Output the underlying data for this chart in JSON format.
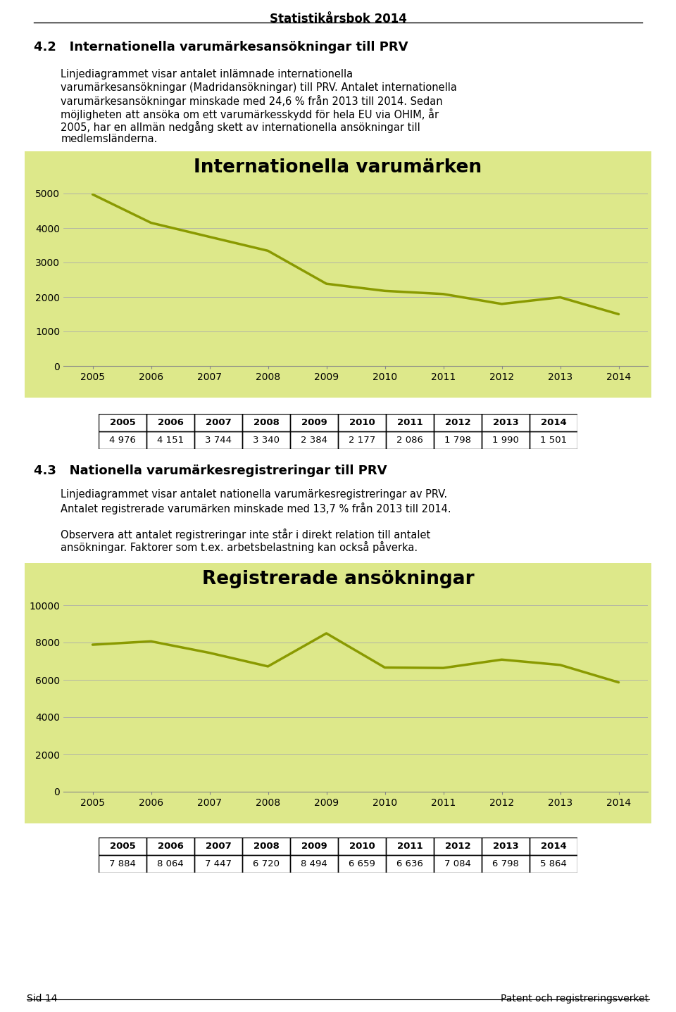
{
  "page_title": "Statistikårsbok 2014",
  "footer_left": "Sid 14",
  "footer_right": "Patent och registreringsverket",
  "section1_title": "4.2   Internationella varumärkesansökningar till PRV",
  "section1_line1": "Linjediagrammet visar antalet inlämnade internationella",
  "section1_line2": "varumärkesansökningar (Madridansökningar) till PRV. Antalet internationella",
  "section1_line3": "varumärkesansökningar minskade med 24,6 % från 2013 till 2014. Sedan",
  "section1_line4": "möjligheten att ansöka om ett varumärkesskydd för hela EU via OHIM, år",
  "section1_line5": "2005, har en allmän nedgång skett av internationella ansökningar till",
  "section1_line6": "medlemsländerna.",
  "chart1_title": "Internationella varumärken",
  "chart1_years": [
    2005,
    2006,
    2007,
    2008,
    2009,
    2010,
    2011,
    2012,
    2013,
    2014
  ],
  "chart1_values": [
    4976,
    4151,
    3744,
    3340,
    2384,
    2177,
    2086,
    1798,
    1990,
    1501
  ],
  "chart1_ylim": [
    0,
    5000
  ],
  "chart1_yticks": [
    0,
    1000,
    2000,
    3000,
    4000,
    5000
  ],
  "chart1_bg": "#dde88a",
  "chart1_line_color": "#8a9a00",
  "table1_years": [
    "2005",
    "2006",
    "2007",
    "2008",
    "2009",
    "2010",
    "2011",
    "2012",
    "2013",
    "2014"
  ],
  "table1_values": [
    "4 976",
    "4 151",
    "3 744",
    "3 340",
    "2 384",
    "2 177",
    "2 086",
    "1 798",
    "1 990",
    "1 501"
  ],
  "section2_title": "4.3   Nationella varumärkesregistreringar till PRV",
  "section2_line1": "Linjediagrammet visar antalet nationella varumärkesregistreringar av PRV.",
  "section2_line2": "Antalet registrerade varumärken minskade med 13,7 % från 2013 till 2014.",
  "section2_line3": "",
  "section2_line4": "Observera att antalet registreringar inte står i direkt relation till antalet",
  "section2_line5": "ansökningar. Faktorer som t.ex. arbetsbelastning kan också påverka.",
  "chart2_title": "Registrerade ansökningar",
  "chart2_years": [
    2005,
    2006,
    2007,
    2008,
    2009,
    2010,
    2011,
    2012,
    2013,
    2014
  ],
  "chart2_values": [
    7884,
    8064,
    7447,
    6720,
    8494,
    6659,
    6636,
    7084,
    6798,
    5864
  ],
  "chart2_ylim": [
    0,
    10000
  ],
  "chart2_yticks": [
    0,
    2000,
    4000,
    6000,
    8000,
    10000
  ],
  "chart2_bg": "#dde88a",
  "chart2_line_color": "#8a9a00",
  "table2_years": [
    "2005",
    "2006",
    "2007",
    "2008",
    "2009",
    "2010",
    "2011",
    "2012",
    "2013",
    "2014"
  ],
  "table2_values": [
    "7 884",
    "8 064",
    "7 447",
    "6 720",
    "8 494",
    "6 659",
    "6 636",
    "7 084",
    "6 798",
    "5 864"
  ]
}
